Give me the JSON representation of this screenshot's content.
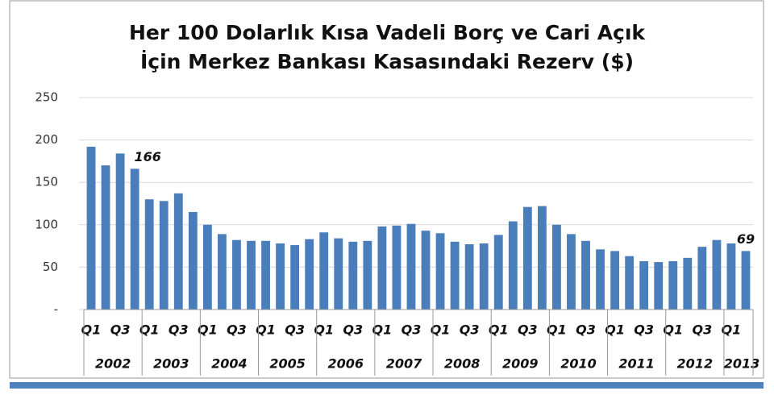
{
  "chart_data": {
    "type": "bar",
    "title": [
      "Her 100 Dolarlık Kısa Vadeli Borç ve Cari Açık",
      "İçin Merkez Bankası Kasasındaki Rezerv ($)"
    ],
    "categories": [
      "Q1",
      null,
      "Q3",
      null,
      "Q1",
      null,
      "Q3",
      null,
      "Q1",
      null,
      "Q3",
      null,
      "Q1",
      null,
      "Q3",
      null,
      "Q1",
      null,
      "Q3",
      null,
      "Q1",
      null,
      "Q3",
      null,
      "Q1",
      null,
      "Q3",
      null,
      "Q1",
      null,
      "Q3",
      null,
      "Q1",
      null,
      "Q3",
      null,
      "Q1",
      null,
      "Q3",
      null,
      "Q1",
      null,
      "Q3",
      null,
      "Q1",
      null
    ],
    "category_groups": [
      {
        "label": "2002",
        "size": 4
      },
      {
        "label": "2003",
        "size": 4
      },
      {
        "label": "2004",
        "size": 4
      },
      {
        "label": "2005",
        "size": 4
      },
      {
        "label": "2006",
        "size": 4
      },
      {
        "label": "2007",
        "size": 4
      },
      {
        "label": "2008",
        "size": 4
      },
      {
        "label": "2009",
        "size": 4
      },
      {
        "label": "2010",
        "size": 4
      },
      {
        "label": "2011",
        "size": 4
      },
      {
        "label": "2012",
        "size": 4
      },
      {
        "label": "2013",
        "size": 2
      }
    ],
    "values": [
      192,
      170,
      184,
      166,
      130,
      128,
      137,
      115,
      100,
      89,
      82,
      81,
      81,
      78,
      76,
      83,
      91,
      84,
      80,
      81,
      98,
      99,
      101,
      93,
      90,
      80,
      77,
      78,
      88,
      104,
      121,
      122,
      100,
      89,
      81,
      71,
      69,
      63,
      57,
      56,
      57,
      61,
      74,
      82,
      78,
      69
    ],
    "value_labels": [
      null,
      null,
      null,
      "166",
      null,
      null,
      null,
      null,
      null,
      null,
      null,
      null,
      null,
      null,
      null,
      null,
      null,
      null,
      null,
      null,
      null,
      null,
      null,
      null,
      null,
      null,
      null,
      null,
      null,
      null,
      null,
      null,
      null,
      null,
      null,
      null,
      null,
      null,
      null,
      null,
      null,
      null,
      null,
      null,
      null,
      "69"
    ],
    "color": "#4a7ebb",
    "ylim": [
      0,
      250
    ],
    "yticks": [
      {
        "value": 0,
        "label": "-"
      },
      50,
      100,
      150,
      200,
      250
    ],
    "grid": true
  }
}
